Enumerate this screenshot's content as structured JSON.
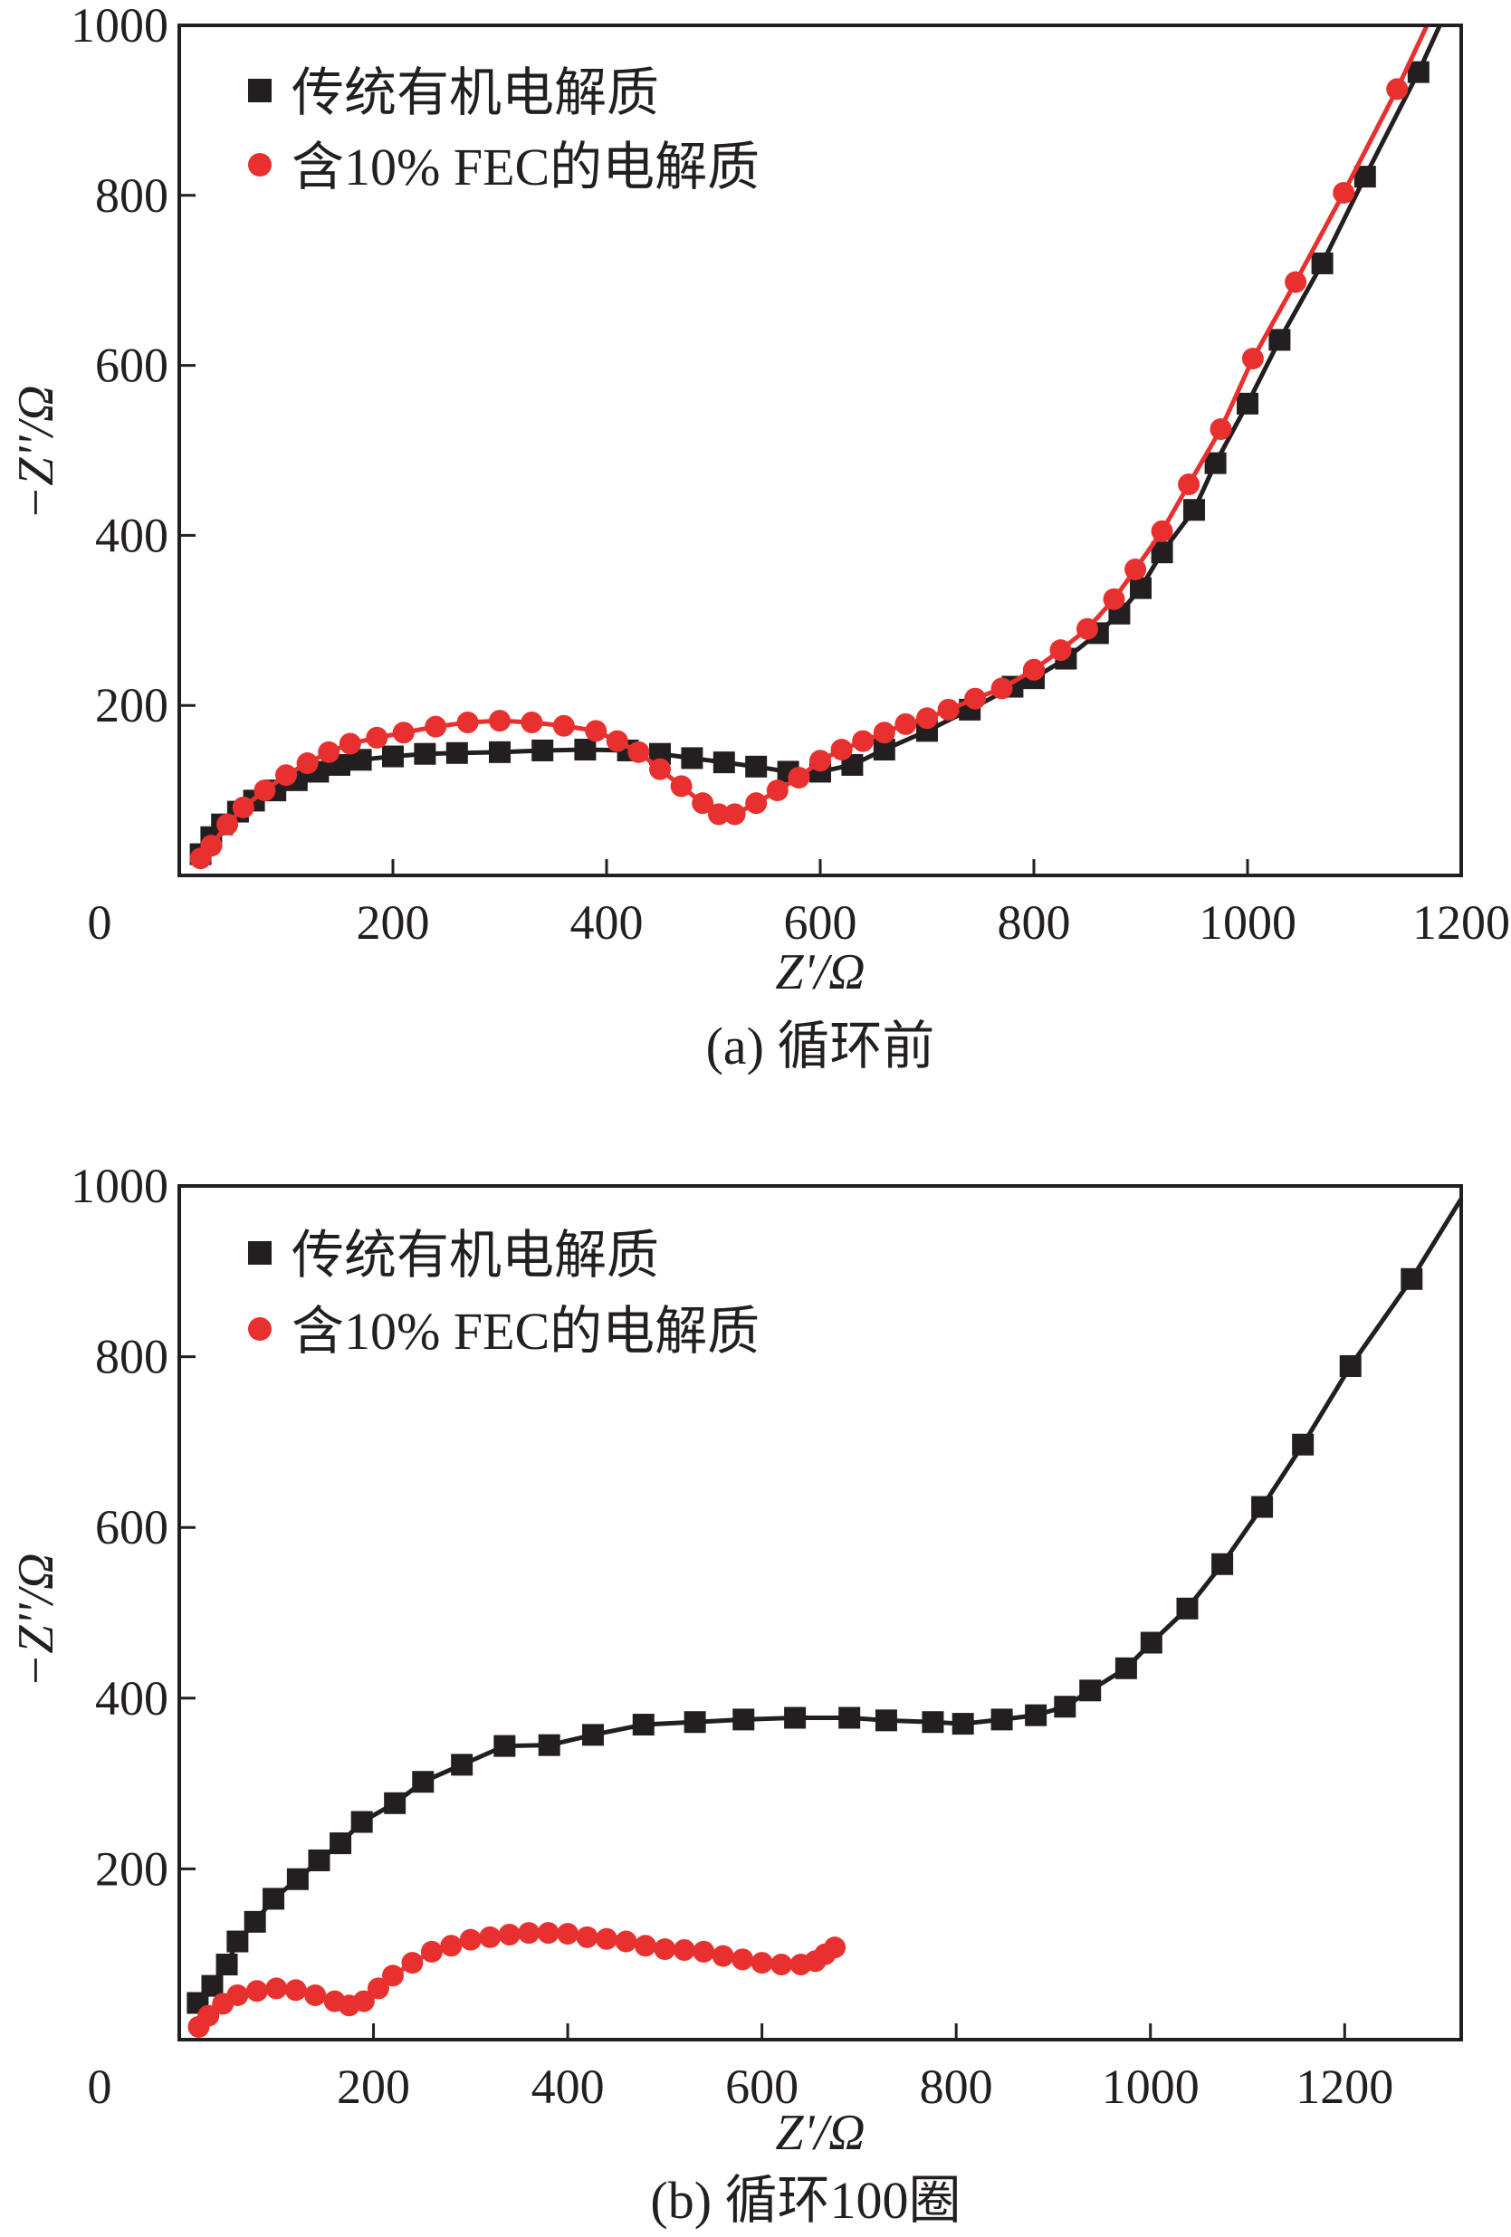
{
  "colors": {
    "black": "#231f20",
    "red": "#e8312f"
  },
  "chart_data": [
    {
      "type": "scatter",
      "caption": "(a) 循环前",
      "xlabel": "Z'/Ω",
      "ylabel": "−Z''/Ω",
      "xlim": [
        0,
        1200
      ],
      "ylim": [
        0,
        1000
      ],
      "xticks": [
        "0",
        "200",
        "400",
        "600",
        "800",
        "1000",
        "1200"
      ],
      "yticks": [
        "200",
        "400",
        "600",
        "800",
        "1000"
      ],
      "legend_position": "top-left",
      "series": [
        {
          "name": "传统有机电解质",
          "marker": "square",
          "color": "#231f20",
          "x": [
            20,
            30,
            40,
            55,
            70,
            90,
            110,
            130,
            150,
            170,
            200,
            230,
            260,
            300,
            340,
            380,
            420,
            450,
            480,
            510,
            540,
            570,
            600,
            630,
            660,
            700,
            740,
            780,
            800,
            830,
            860,
            880,
            900,
            920,
            950,
            970,
            1000,
            1030,
            1070,
            1110,
            1160
          ],
          "y": [
            25,
            45,
            60,
            75,
            88,
            100,
            112,
            122,
            130,
            136,
            140,
            143,
            144,
            145,
            147,
            148,
            147,
            143,
            138,
            133,
            128,
            122,
            122,
            130,
            148,
            170,
            195,
            222,
            232,
            255,
            285,
            308,
            338,
            380,
            430,
            485,
            555,
            630,
            720,
            822,
            945
          ],
          "line_end": [
            1180,
            1000
          ]
        },
        {
          "name": "含10% FEC的电解质",
          "marker": "circle",
          "color": "#e8312f",
          "x": [
            20,
            30,
            45,
            60,
            80,
            100,
            120,
            140,
            160,
            185,
            210,
            240,
            270,
            300,
            330,
            360,
            390,
            410,
            430,
            450,
            470,
            490,
            505,
            520,
            540,
            560,
            580,
            600,
            620,
            640,
            660,
            680,
            700,
            720,
            745,
            770,
            800,
            825,
            850,
            875,
            895,
            920,
            945,
            975,
            1005,
            1045,
            1090,
            1140
          ],
          "y": [
            20,
            35,
            60,
            80,
            100,
            118,
            132,
            145,
            155,
            162,
            168,
            175,
            180,
            182,
            180,
            176,
            170,
            158,
            145,
            125,
            105,
            85,
            72,
            72,
            85,
            100,
            115,
            135,
            148,
            158,
            168,
            178,
            185,
            195,
            208,
            220,
            242,
            265,
            290,
            325,
            360,
            405,
            460,
            525,
            608,
            698,
            803,
            925
          ],
          "line_end": [
            1168,
            1000
          ]
        }
      ]
    },
    {
      "type": "scatter",
      "caption": "(b) 循环100圈",
      "xlabel": "Z'/Ω",
      "ylabel": "−Z''/Ω",
      "xlim": [
        0,
        1320
      ],
      "ylim": [
        0,
        1000
      ],
      "xticks": [
        "0",
        "200",
        "400",
        "600",
        "800",
        "1000",
        "1200"
      ],
      "yticks": [
        "200",
        "400",
        "600",
        "800",
        "1000"
      ],
      "legend_position": "top-left",
      "series": [
        {
          "name": "传统有机电解质",
          "marker": "square",
          "color": "#231f20",
          "x": [
            19,
            34,
            49,
            60,
            78,
            97,
            122,
            144,
            166,
            188,
            222,
            251,
            291,
            335,
            381,
            426,
            478,
            531,
            581,
            634,
            690,
            728,
            776,
            807,
            847,
            882,
            912,
            938,
            975,
            1001,
            1038,
            1074,
            1115,
            1157,
            1206,
            1269
          ],
          "y": [
            43,
            63,
            88,
            115,
            138,
            165,
            188,
            210,
            230,
            255,
            277,
            302,
            322,
            344,
            345,
            357,
            369,
            372,
            375,
            377,
            377,
            374,
            372,
            370,
            375,
            380,
            390,
            409,
            435,
            465,
            505,
            557,
            624,
            697,
            789,
            891
          ],
          "line_end": [
            1320,
            985
          ]
        },
        {
          "name": "含10% FEC的电解质",
          "marker": "circle",
          "color": "#e8312f",
          "x": [
            20,
            30,
            45,
            60,
            80,
            100,
            120,
            140,
            160,
            175,
            190,
            205,
            220,
            240,
            260,
            280,
            300,
            320,
            340,
            360,
            380,
            400,
            420,
            440,
            460,
            480,
            500,
            520,
            540,
            560,
            580,
            600,
            620,
            640,
            655,
            665,
            675
          ],
          "y": [
            15,
            28,
            42,
            52,
            57,
            60,
            58,
            52,
            45,
            40,
            45,
            60,
            75,
            90,
            103,
            110,
            117,
            120,
            123,
            125,
            125,
            124,
            120,
            118,
            115,
            110,
            106,
            105,
            103,
            98,
            94,
            90,
            88,
            88,
            92,
            100,
            108
          ],
          "line_end": null
        }
      ]
    }
  ]
}
